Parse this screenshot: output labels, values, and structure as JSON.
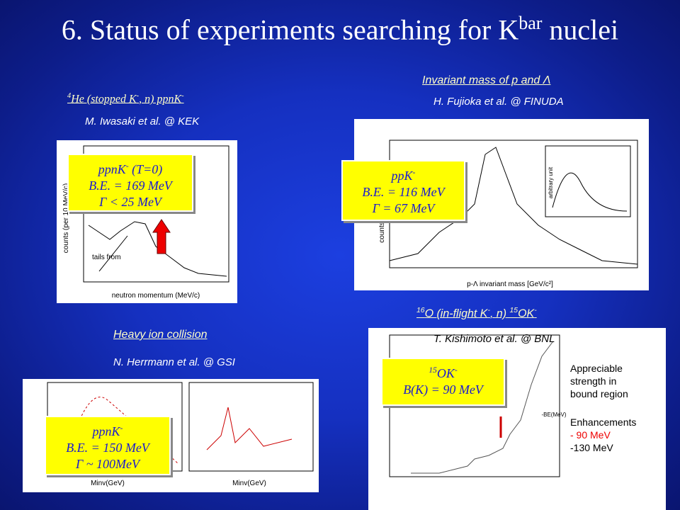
{
  "title": [
    "6. Status of experiments searching for K",
    "bar",
    " nuclei"
  ],
  "panels": [
    {
      "heading": [
        "4",
        "He (stopped K",
        "-",
        ", n) ppnK",
        "-"
      ],
      "author": "M. Iwasaki et al. @ KEK",
      "box": [
        [
          "ppnK",
          "-",
          " (T=0)"
        ],
        [
          "B.E. = 169 MeV"
        ],
        [
          "Γ < 25 MeV"
        ]
      ],
      "plot_texts": [
        "neutron momentum (MeV/c)",
        "counts (per 10 MeV/c)",
        "tails from"
      ]
    },
    {
      "heading": [
        "Invariant mass of p and Λ"
      ],
      "author": "H. Fujioka et al. @ FINUDA",
      "box": [
        [
          "ppK",
          "-",
          ""
        ],
        [
          "B.E. = 116 MeV"
        ],
        [
          "Γ = 67 MeV"
        ]
      ],
      "plot_texts": [
        "p-Λ invariant mass [GeV/c²]",
        "counts",
        "arbitrary unit"
      ]
    },
    {
      "heading": [
        "Heavy ion collision"
      ],
      "author": "N. Herrmann et al. @ GSI",
      "box": [
        [
          "ppnK",
          "-",
          ""
        ],
        [
          "B.E. = 150 MeV"
        ],
        [
          "Γ ~ 100MeV"
        ]
      ],
      "plot_texts": [
        "Minv(GeV)",
        "Minv(GeV)"
      ]
    },
    {
      "heading": [
        "16",
        "O (in-flight K",
        "-",
        ", n) ",
        "15",
        "OK",
        "-"
      ],
      "author": "T. Kishimoto et al. @ BNL",
      "box": [
        [
          "",
          "15",
          "OK",
          "-"
        ],
        [
          "B(K) = 90 MeV"
        ]
      ],
      "plot_texts": [
        "Appreciable",
        "strength in",
        "bound region",
        "Enhancements",
        "- 90 MeV",
        "-130 MeV",
        "-BE(MeV)"
      ]
    }
  ]
}
